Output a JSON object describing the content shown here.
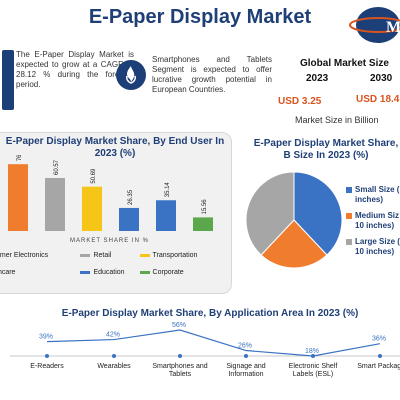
{
  "header": {
    "title": "E-Paper Display Market"
  },
  "cagr_box": {
    "text": "The E-Paper Display Market is expected to grow at a CAGR of 28.12 % during the forecast period."
  },
  "segment_box": {
    "text": "Smartphones and Tablets Segment is expected to offer lucrative growth potential in European Countries."
  },
  "market_size": {
    "title": "Global Market Size",
    "year_a": "2023",
    "year_b": "2030",
    "value_a": "USD 3.25",
    "value_b": "USD 18.4",
    "caption": "Market Size in Billion"
  },
  "colors": {
    "orange": "#f07c2e",
    "grey": "#a6a6a6",
    "yellow": "#f5c518",
    "blue": "#3a72c4",
    "green": "#5aa84b",
    "navy": "#1f3f77"
  },
  "chart_data": [
    {
      "type": "bar",
      "title": "E-Paper Display Market Share, By End User In 2023 (%)",
      "xlabel": "MARKET SHARE IN %",
      "categories": [
        "umer Electronics",
        "Retail",
        "Transportation",
        "thcare",
        "Education",
        "Corporate"
      ],
      "values": [
        76.36,
        60.57,
        50.69,
        26.35,
        35.14,
        15.56
      ],
      "value_labels": [
        "76.36",
        "60.57",
        "50.69",
        "26.35",
        "35.14",
        "15.56"
      ],
      "colors": [
        "#f07c2e",
        "#a6a6a6",
        "#f5c518",
        "#3a72c4",
        "#3a72c4",
        "#5aa84b"
      ],
      "ylim": [
        0,
        80
      ],
      "legend": "bottom"
    },
    {
      "type": "pie",
      "title": "E-Paper Display Market Share, B Size In 2023 (%)",
      "labels": [
        "Small Size ( inches)",
        "Medium Siz 10 inches)",
        "Large Size ( 10 inches)"
      ],
      "values": [
        38,
        24,
        38
      ],
      "colors": [
        "#3a72c4",
        "#f07c2e",
        "#a6a6a6"
      ],
      "legend": "right"
    },
    {
      "type": "line",
      "title": "E-Paper Display Market Share, By Application Area In 2023 (%)",
      "categories": [
        "E-Readers",
        "Wearables",
        "Smartphones and Tablets",
        "Signage and Information",
        "Electronic Shelf Labels (ESL)",
        "Smart Packagi"
      ],
      "values": [
        39,
        42,
        56,
        26,
        18,
        36
      ],
      "value_labels": [
        "39%",
        "42%",
        "56%",
        "26%",
        "18%",
        "36%"
      ],
      "ylim": [
        0,
        60
      ]
    }
  ]
}
